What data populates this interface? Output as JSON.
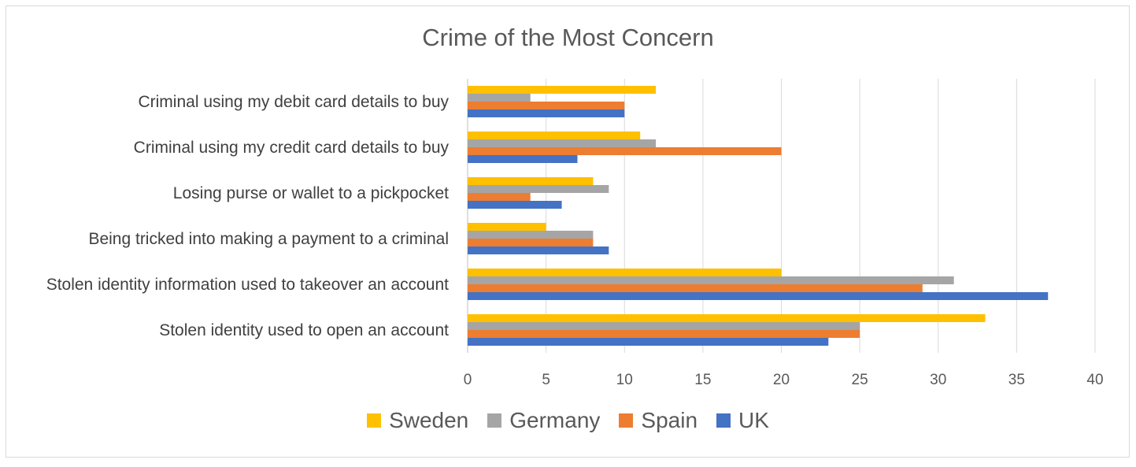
{
  "chart_data": {
    "type": "bar",
    "orientation": "horizontal",
    "title": "Crime of the Most Concern",
    "categories": [
      "Criminal using my debit card details to buy",
      "Criminal using my credit card details to buy",
      "Losing purse or wallet to a pickpocket",
      "Being tricked into making a payment to a criminal",
      "Stolen identity information used to takeover an account",
      "Stolen identity used to open an account"
    ],
    "series": [
      {
        "name": "Sweden",
        "color": "#FFC000",
        "values": [
          12,
          11,
          8,
          5,
          20,
          33
        ]
      },
      {
        "name": "Germany",
        "color": "#A5A5A5",
        "values": [
          4,
          12,
          9,
          8,
          31,
          25
        ]
      },
      {
        "name": "Spain",
        "color": "#ED7D31",
        "values": [
          10,
          20,
          4,
          8,
          29,
          25
        ]
      },
      {
        "name": "UK",
        "color": "#4472C4",
        "values": [
          10,
          7,
          6,
          9,
          37,
          23
        ]
      }
    ],
    "xlim": [
      0,
      40
    ],
    "xticks": [
      "0",
      "5",
      "10",
      "15",
      "20",
      "25",
      "30",
      "35",
      "40"
    ],
    "grid": "vertical",
    "legend_position": "bottom"
  }
}
